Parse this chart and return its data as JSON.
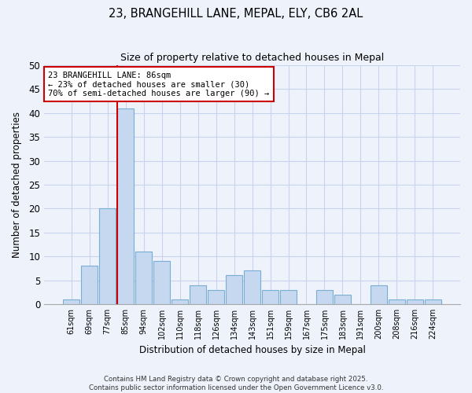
{
  "title": "23, BRANGEHILL LANE, MEPAL, ELY, CB6 2AL",
  "subtitle": "Size of property relative to detached houses in Mepal",
  "xlabel": "Distribution of detached houses by size in Mepal",
  "ylabel": "Number of detached properties",
  "bin_labels": [
    "61sqm",
    "69sqm",
    "77sqm",
    "85sqm",
    "94sqm",
    "102sqm",
    "110sqm",
    "118sqm",
    "126sqm",
    "134sqm",
    "143sqm",
    "151sqm",
    "159sqm",
    "167sqm",
    "175sqm",
    "183sqm",
    "191sqm",
    "200sqm",
    "208sqm",
    "216sqm",
    "224sqm"
  ],
  "bar_heights": [
    1,
    8,
    20,
    41,
    11,
    9,
    1,
    4,
    3,
    6,
    7,
    3,
    3,
    0,
    3,
    2,
    0,
    4,
    1,
    1,
    1
  ],
  "bar_color": "#c5d8f0",
  "bar_edge_color": "#7aadd4",
  "vline_index": 3,
  "vline_color": "#cc0000",
  "annotation_text": "23 BRANGEHILL LANE: 86sqm\n← 23% of detached houses are smaller (30)\n70% of semi-detached houses are larger (90) →",
  "annotation_box_color": "#ffffff",
  "annotation_box_edge": "#cc0000",
  "ylim": [
    0,
    50
  ],
  "yticks": [
    0,
    5,
    10,
    15,
    20,
    25,
    30,
    35,
    40,
    45,
    50
  ],
  "bg_color": "#eef2fb",
  "grid_color": "#c8d4ee",
  "footer1": "Contains HM Land Registry data © Crown copyright and database right 2025.",
  "footer2": "Contains public sector information licensed under the Open Government Licence v3.0."
}
